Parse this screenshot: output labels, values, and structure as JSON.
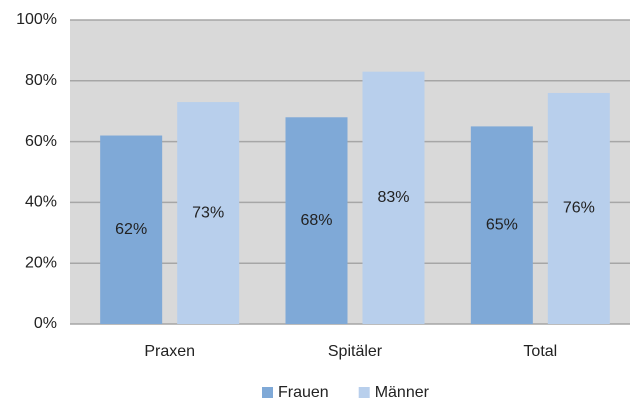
{
  "chart_data": {
    "type": "bar",
    "categories": [
      "Praxen",
      "Spitäler",
      "Total"
    ],
    "series": [
      {
        "name": "Frauen",
        "color": "#7fa9d7",
        "values": [
          62,
          68,
          65
        ],
        "value_labels": [
          "62%",
          "68%",
          "65%"
        ]
      },
      {
        "name": "Männer",
        "color": "#b8cfec",
        "values": [
          73,
          83,
          76
        ],
        "value_labels": [
          "73%",
          "83%",
          "76%"
        ]
      }
    ],
    "ylim": [
      0,
      100
    ],
    "yticks": [
      {
        "value": 0,
        "label": "0%"
      },
      {
        "value": 20,
        "label": "20%"
      },
      {
        "value": 40,
        "label": "40%"
      },
      {
        "value": 60,
        "label": "60%"
      },
      {
        "value": 80,
        "label": "80%"
      },
      {
        "value": 100,
        "label": "100%"
      }
    ],
    "grid": true,
    "legend": "bottom"
  }
}
